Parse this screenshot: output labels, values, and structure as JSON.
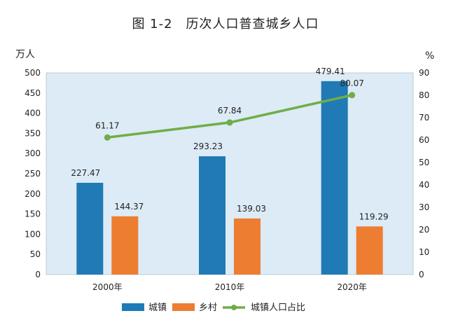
{
  "chart_data": {
    "type": "bar",
    "title": "图 1-2　历次人口普查城乡人口",
    "left_unit": "万人",
    "right_unit": "%",
    "categories": [
      "2000年",
      "2010年",
      "2020年"
    ],
    "ylim": [
      0,
      500
    ],
    "ylim_right": [
      0,
      90
    ],
    "yticks": [
      0,
      50,
      100,
      150,
      200,
      250,
      300,
      350,
      400,
      450,
      500
    ],
    "yticks_right": [
      0,
      10,
      20,
      30,
      40,
      50,
      60,
      70,
      80,
      90
    ],
    "grid": false,
    "legend_position": "bottom",
    "series": [
      {
        "name": "城镇",
        "kind": "bar",
        "axis": "left",
        "color": "#1f7ab5",
        "values": [
          227.47,
          293.23,
          479.41
        ],
        "labels": [
          "227.47",
          "293.23",
          "479.41"
        ]
      },
      {
        "name": "乡村",
        "kind": "bar",
        "axis": "left",
        "color": "#ed7d31",
        "values": [
          144.37,
          139.03,
          119.29
        ],
        "labels": [
          "144.37",
          "139.03",
          "119.29"
        ]
      },
      {
        "name": "城镇人口占比",
        "kind": "line",
        "axis": "right",
        "color": "#70ad47",
        "values": [
          61.17,
          67.84,
          80.07
        ],
        "labels": [
          "61.17",
          "67.84",
          "80.07"
        ]
      }
    ],
    "plot_background": "#dcebf6"
  }
}
